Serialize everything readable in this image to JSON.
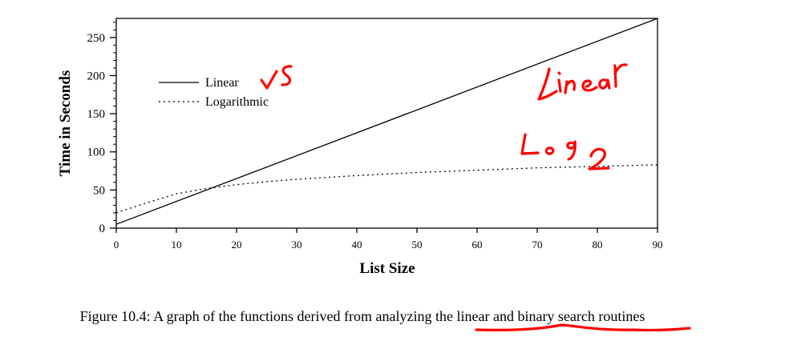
{
  "chart_data": {
    "type": "line",
    "xlabel": "List Size",
    "ylabel": "Time in Seconds",
    "xlim": [
      0,
      90
    ],
    "ylim": [
      0,
      275
    ],
    "x_ticks": [
      0,
      10,
      20,
      30,
      40,
      50,
      60,
      70,
      80,
      90
    ],
    "y_ticks": [
      0,
      50,
      100,
      150,
      200,
      250
    ],
    "grid": false,
    "legend_position": "upper-left",
    "series": [
      {
        "name": "Linear",
        "style": "solid",
        "x": [
          0,
          90
        ],
        "y": [
          5,
          275
        ]
      },
      {
        "name": "Logarithmic",
        "style": "dotted",
        "x": [
          0,
          5,
          10,
          15,
          20,
          25,
          30,
          40,
          50,
          60,
          70,
          80,
          90
        ],
        "y": [
          20,
          33,
          45,
          52,
          57,
          61,
          64,
          69,
          73,
          76,
          79,
          81,
          83
        ]
      }
    ]
  },
  "caption": "Figure 10.4: A graph of the functions derived from analyzing the linear and binary search routines",
  "colors": {
    "annotation": "#ff0000",
    "line": "#000000"
  },
  "annotations": [
    "vs",
    "linear",
    "Log2"
  ]
}
